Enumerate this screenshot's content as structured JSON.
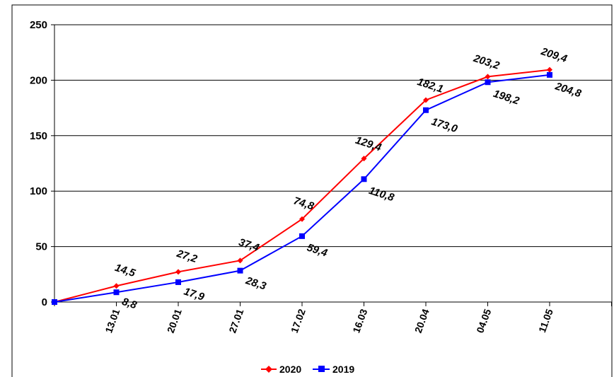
{
  "chart_data": {
    "type": "line",
    "categories": [
      "",
      "13.01",
      "20.01",
      "27.01",
      "17.02",
      "16.03",
      "20.04",
      "04.05",
      "11.05"
    ],
    "series": [
      {
        "name": "2020",
        "color": "#ff0000",
        "marker": "diamond",
        "values": [
          0,
          14.5,
          27.2,
          37.4,
          74.8,
          129.4,
          182.1,
          203.2,
          209.4
        ],
        "labels": [
          "",
          "14,5",
          "27,2",
          "37,4",
          "74,8",
          "129,4",
          "182,1",
          "203,2",
          "209,4"
        ]
      },
      {
        "name": "2019",
        "color": "#0000ff",
        "marker": "square",
        "values": [
          0,
          8.8,
          17.9,
          28.3,
          59.4,
          110.8,
          173.0,
          198.2,
          204.8
        ],
        "labels": [
          "",
          "8,8",
          "17,9",
          "28,3",
          "59,4",
          "110,8",
          "173,0",
          "198,2",
          "204,8"
        ]
      }
    ],
    "yticks": [
      "0",
      "50",
      "100",
      "150",
      "200",
      "250"
    ],
    "ylim": [
      0,
      250
    ],
    "grid": true,
    "legend_position": "bottom"
  }
}
